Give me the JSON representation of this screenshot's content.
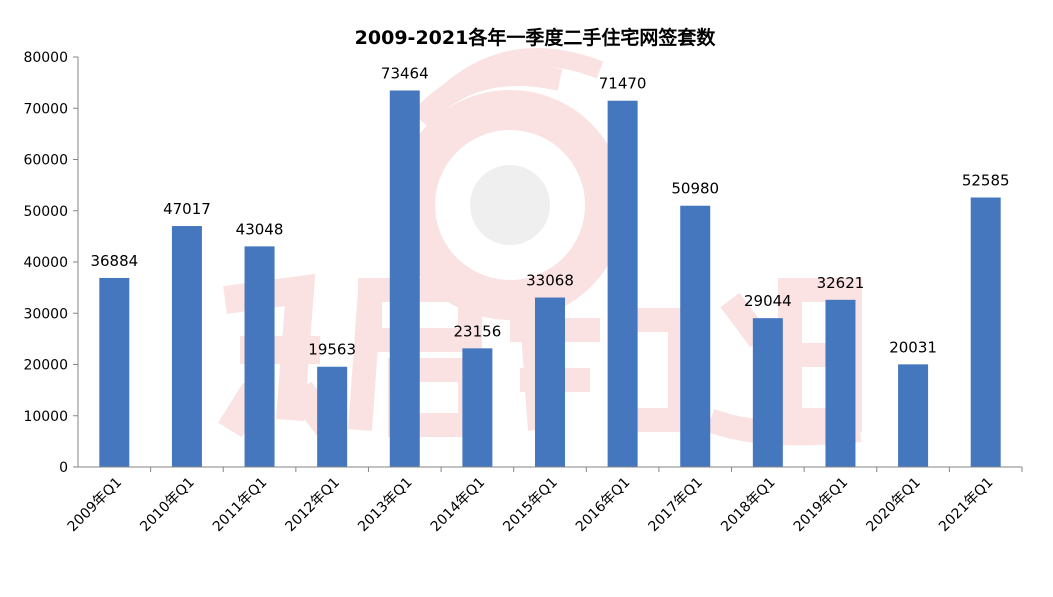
{
  "chart_data": {
    "type": "bar",
    "title": "2009-2021各年一季度二手住宅网签套数",
    "xlabel": "",
    "ylabel": "",
    "ylim": [
      0,
      80000
    ],
    "yticks": [
      0,
      10000,
      20000,
      30000,
      40000,
      50000,
      60000,
      70000,
      80000
    ],
    "grid": false,
    "legend": "none",
    "bar_color": "#4577be",
    "categories": [
      "2009年Q1",
      "2010年Q1",
      "2011年Q1",
      "2012年Q1",
      "2013年Q1",
      "2014年Q1",
      "2015年Q1",
      "2016年Q1",
      "2017年Q1",
      "2018年Q1",
      "2019年Q1",
      "2020年Q1",
      "2021年Q1"
    ],
    "values": [
      36884,
      47017,
      43048,
      19563,
      73464,
      23156,
      33068,
      71470,
      50980,
      29044,
      32621,
      20031,
      52585
    ],
    "data_labels": [
      "36884",
      "47017",
      "43048",
      "19563",
      "73464",
      "23156",
      "33068",
      "71470",
      "50980",
      "29044",
      "32621",
      "20031",
      "52585"
    ],
    "tick_labels": [
      "0",
      "10000",
      "20000",
      "30000",
      "40000",
      "50000",
      "60000",
      "70000",
      "80000"
    ]
  }
}
